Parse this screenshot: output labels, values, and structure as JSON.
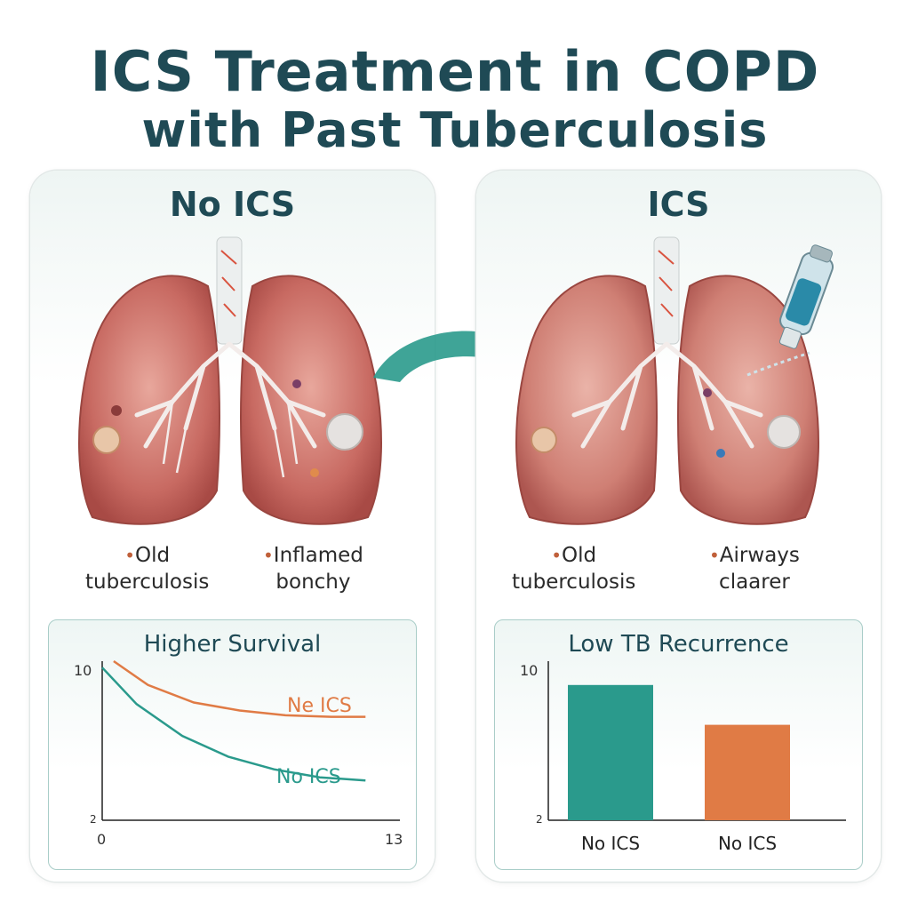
{
  "title": {
    "line1": "ICS Treatment in COPD",
    "line2": "with Past Tuberculosis"
  },
  "panels": {
    "left": {
      "heading": "No ICS",
      "label_left": [
        "Old",
        "tuberculosis"
      ],
      "label_right": [
        "Inflamed",
        "bonchy"
      ],
      "chart": {
        "title": "Higher Survival",
        "y_tick": "10",
        "y_tick_bottom": "2",
        "x_tick_start": "0",
        "x_tick_end": "13",
        "series_labels": [
          "Ne ICS",
          "No ICS"
        ]
      }
    },
    "right": {
      "heading": "ICS",
      "label_left": [
        "Old",
        "tuberculosis"
      ],
      "label_right": [
        "Airways",
        "claarer"
      ],
      "chart": {
        "title": "Low TB Recurrence",
        "y_tick": "10",
        "y_tick_bottom": "2",
        "categories": [
          "No ICS",
          "No ICS"
        ]
      }
    }
  },
  "chart_data": [
    {
      "type": "line",
      "title": "Higher Survival",
      "xlim": [
        0,
        13
      ],
      "ylim": [
        0,
        10
      ],
      "series": [
        {
          "name": "Ne ICS",
          "color": "#e07b45",
          "x": [
            0.5,
            2,
            4,
            6,
            8,
            10,
            11.5
          ],
          "y": [
            10,
            8.5,
            7.4,
            6.9,
            6.6,
            6.5,
            6.5
          ]
        },
        {
          "name": "No ICS",
          "color": "#2a9a8c",
          "x": [
            0,
            1.5,
            3.5,
            5.5,
            7.5,
            9.5,
            11.5
          ],
          "y": [
            9.6,
            7.3,
            5.3,
            4.0,
            3.2,
            2.7,
            2.5
          ]
        }
      ]
    },
    {
      "type": "bar",
      "title": "Low TB Recurrence",
      "categories": [
        "No ICS",
        "No ICS"
      ],
      "values": [
        8.5,
        6.0
      ],
      "colors": [
        "#2a9a8c",
        "#e07b45"
      ],
      "ylim": [
        0,
        10
      ]
    }
  ]
}
